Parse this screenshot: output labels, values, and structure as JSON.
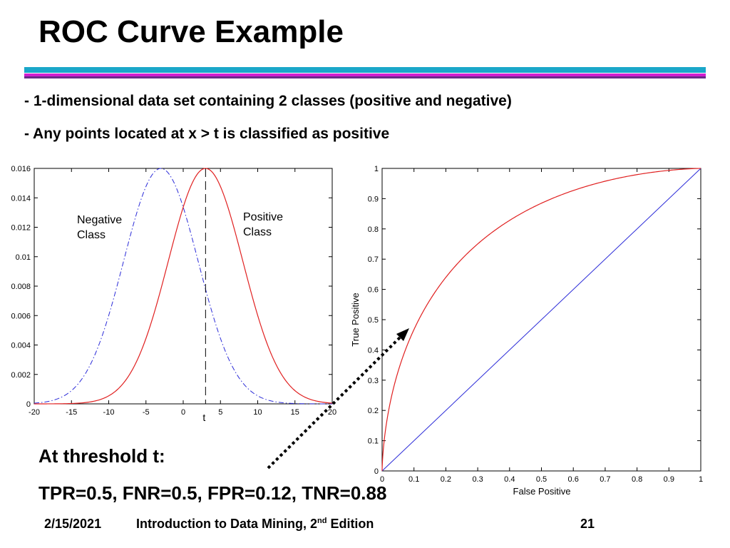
{
  "slide": {
    "title": "ROC Curve Example",
    "bullets": [
      "- 1-dimensional data set containing 2 classes (positive and negative)",
      "- Any points located at x > t is classified as positive"
    ],
    "threshold_heading": "At threshold t:",
    "metrics_line": "TPR=0.5, FNR=0.5, FPR=0.12, TNR=0.88",
    "footer": {
      "date": "2/15/2021",
      "course_prefix": "Introduction to Data Mining, 2",
      "course_sup": "nd",
      "course_suffix": " Edition",
      "page": "21"
    }
  },
  "colors": {
    "bar_blue": "#1aa7c9",
    "bar_magenta": "#d21fd0",
    "bar_purple": "#6a2b8a",
    "positive_curve": "#e02020",
    "negative_curve": "#2a2ad8",
    "axis": "#000000",
    "tick_text": "#000000"
  },
  "chart_data": [
    {
      "type": "line",
      "title": "",
      "xlabel": "",
      "ylabel": "",
      "xlim": [
        -20,
        20
      ],
      "ylim": [
        0,
        0.016
      ],
      "xticks": [
        "-20",
        "-15",
        "-10",
        "-5",
        "0",
        "5",
        "10",
        "15",
        "20"
      ],
      "yticks": [
        "0",
        "0.002",
        "0.004",
        "0.006",
        "0.008",
        "0.01",
        "0.012",
        "0.014",
        "0.016"
      ],
      "series": [
        {
          "name": "Negative Class",
          "label_line1": "Negative",
          "label_line2": "Class",
          "style": "dash-dot",
          "distribution": "normal",
          "mean": -3,
          "sd": 5,
          "peak": 0.016
        },
        {
          "name": "Positive Class",
          "label_line1": "Positive",
          "label_line2": "Class",
          "style": "solid",
          "distribution": "normal",
          "mean": 3,
          "sd": 5,
          "peak": 0.016
        }
      ],
      "threshold": {
        "label": "t",
        "x": 3
      }
    },
    {
      "type": "line",
      "title": "",
      "xlabel": "False Positive",
      "ylabel": "True Positive",
      "xlim": [
        0,
        1
      ],
      "ylim": [
        0,
        1
      ],
      "xticks": [
        "0",
        "0.1",
        "0.2",
        "0.3",
        "0.4",
        "0.5",
        "0.6",
        "0.7",
        "0.8",
        "0.9",
        "1"
      ],
      "yticks": [
        "0",
        "0.1",
        "0.2",
        "0.3",
        "0.4",
        "0.5",
        "0.6",
        "0.7",
        "0.8",
        "0.9",
        "1"
      ],
      "series": [
        {
          "name": "ROC",
          "style": "solid",
          "model": "binormal",
          "separation": 1.2
        },
        {
          "name": "Diagonal",
          "style": "solid",
          "x": [
            0,
            1
          ],
          "y": [
            0,
            1
          ]
        }
      ],
      "annotation": {
        "arrow_from": "threshold t",
        "arrow_to": "roc point near (0.08, 0.47)",
        "style": "dotted"
      }
    }
  ]
}
